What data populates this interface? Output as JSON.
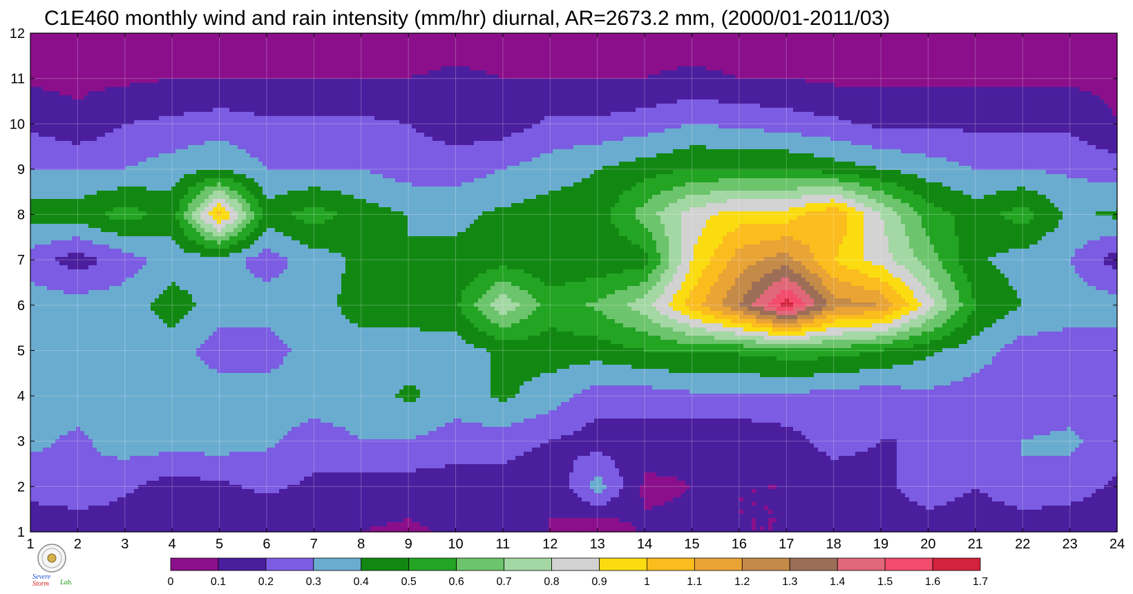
{
  "chart_data": {
    "type": "heatmap",
    "title": "C1E460 monthly wind and rain intensity (mm/hr) diurnal, AR=2673.2 mm, (2000/01-2011/03)",
    "xlabel": "",
    "ylabel": "",
    "x_ticks": [
      "1",
      "2",
      "3",
      "4",
      "5",
      "6",
      "7",
      "8",
      "9",
      "10",
      "11",
      "12",
      "13",
      "14",
      "15",
      "16",
      "17",
      "18",
      "19",
      "20",
      "21",
      "22",
      "23",
      "24"
    ],
    "y_ticks": [
      "1",
      "2",
      "3",
      "4",
      "5",
      "6",
      "7",
      "8",
      "9",
      "10",
      "11",
      "12"
    ],
    "xlim": [
      1,
      24
    ],
    "ylim": [
      1,
      12
    ],
    "grid": true,
    "colorbar": {
      "levels": [
        0,
        0.1,
        0.2,
        0.3,
        0.4,
        0.5,
        0.6,
        0.7,
        0.8,
        0.9,
        1,
        1.1,
        1.2,
        1.3,
        1.4,
        1.5,
        1.6,
        1.7
      ],
      "labels": [
        "0",
        "0.1",
        "0.2",
        "0.3",
        "0.4",
        "0.5",
        "0.6",
        "0.7",
        "0.8",
        "0.9",
        "1",
        "1.1",
        "1.2",
        "1.3",
        "1.4",
        "1.5",
        "1.6",
        "1.7"
      ],
      "colors": [
        "#8b0f8b",
        "#4b1e9e",
        "#7b5ce2",
        "#6aaccf",
        "#128812",
        "#23a423",
        "#6cc46c",
        "#a3d7a3",
        "#d2d2d2",
        "#fadc10",
        "#fbbc1e",
        "#e9a435",
        "#c48a48",
        "#9c6e58",
        "#e06878",
        "#f24b6c",
        "#d3223c"
      ],
      "orientation": "horizontal",
      "placement": "bottom"
    },
    "contour_line_color": "#f0a830",
    "values_rows_month_1_to_12_cols_hour_1_to_24": [
      [
        0.1,
        0.1,
        0.13,
        0.15,
        0.15,
        0.12,
        0.1,
        0.1,
        0.08,
        0.12,
        0.15,
        0.1,
        0.0,
        0.12,
        0.12,
        0.1,
        0.1,
        0.1,
        0.1,
        0.1,
        0.1,
        0.1,
        0.12,
        0.12
      ],
      [
        0.25,
        0.3,
        0.22,
        0.15,
        0.18,
        0.22,
        0.18,
        0.15,
        0.15,
        0.15,
        0.15,
        0.1,
        0.35,
        0.08,
        0.1,
        0.1,
        0.1,
        0.12,
        0.15,
        0.3,
        0.2,
        0.3,
        0.25,
        0.18
      ],
      [
        0.32,
        0.28,
        0.35,
        0.35,
        0.35,
        0.32,
        0.25,
        0.3,
        0.3,
        0.25,
        0.25,
        0.2,
        0.15,
        0.15,
        0.12,
        0.12,
        0.15,
        0.25,
        0.2,
        0.2,
        0.25,
        0.3,
        0.32,
        0.25
      ],
      [
        0.35,
        0.35,
        0.35,
        0.35,
        0.35,
        0.35,
        0.35,
        0.35,
        0.42,
        0.35,
        0.42,
        0.35,
        0.25,
        0.25,
        0.28,
        0.28,
        0.3,
        0.25,
        0.25,
        0.28,
        0.25,
        0.25,
        0.25,
        0.25
      ],
      [
        0.35,
        0.35,
        0.35,
        0.35,
        0.25,
        0.25,
        0.35,
        0.35,
        0.35,
        0.35,
        0.42,
        0.45,
        0.45,
        0.5,
        0.52,
        0.52,
        0.55,
        0.55,
        0.5,
        0.42,
        0.35,
        0.25,
        0.25,
        0.25
      ],
      [
        0.35,
        0.35,
        0.35,
        0.45,
        0.35,
        0.35,
        0.35,
        0.45,
        0.45,
        0.48,
        0.78,
        0.55,
        0.62,
        0.75,
        1.05,
        1.3,
        1.65,
        1.25,
        1.2,
        0.85,
        0.5,
        0.4,
        0.35,
        0.35
      ],
      [
        0.25,
        0.15,
        0.25,
        0.35,
        0.35,
        0.25,
        0.35,
        0.42,
        0.4,
        0.42,
        0.45,
        0.42,
        0.42,
        0.45,
        0.9,
        1.15,
        1.25,
        1.0,
        0.85,
        0.65,
        0.42,
        0.35,
        0.3,
        0.15
      ],
      [
        0.45,
        0.45,
        0.55,
        0.45,
        1.05,
        0.45,
        0.55,
        0.45,
        0.4,
        0.38,
        0.42,
        0.45,
        0.45,
        0.65,
        0.85,
        0.95,
        0.95,
        1.1,
        0.8,
        0.55,
        0.45,
        0.55,
        0.38,
        0.42
      ],
      [
        0.3,
        0.3,
        0.3,
        0.35,
        0.4,
        0.3,
        0.3,
        0.3,
        0.25,
        0.25,
        0.3,
        0.35,
        0.4,
        0.45,
        0.5,
        0.5,
        0.5,
        0.45,
        0.4,
        0.35,
        0.3,
        0.3,
        0.28,
        0.25
      ],
      [
        0.18,
        0.12,
        0.2,
        0.22,
        0.25,
        0.22,
        0.22,
        0.22,
        0.2,
        0.15,
        0.15,
        0.22,
        0.22,
        0.25,
        0.3,
        0.28,
        0.25,
        0.22,
        0.18,
        0.18,
        0.18,
        0.18,
        0.18,
        0.1
      ],
      [
        0.08,
        0.08,
        0.08,
        0.1,
        0.1,
        0.1,
        0.1,
        0.1,
        0.1,
        0.12,
        0.1,
        0.1,
        0.1,
        0.1,
        0.12,
        0.1,
        0.1,
        0.08,
        0.08,
        0.08,
        0.08,
        0.08,
        0.08,
        0.08
      ],
      [
        0.05,
        0.05,
        0.05,
        0.05,
        0.05,
        0.05,
        0.08,
        0.05,
        0.05,
        0.05,
        0.05,
        0.05,
        0.05,
        0.05,
        0.05,
        0.05,
        0.05,
        0.05,
        0.05,
        0.05,
        0.05,
        0.05,
        0.05,
        0.05
      ]
    ]
  },
  "logo": {
    "words": [
      "Severe",
      "Storm",
      "Lab."
    ]
  }
}
